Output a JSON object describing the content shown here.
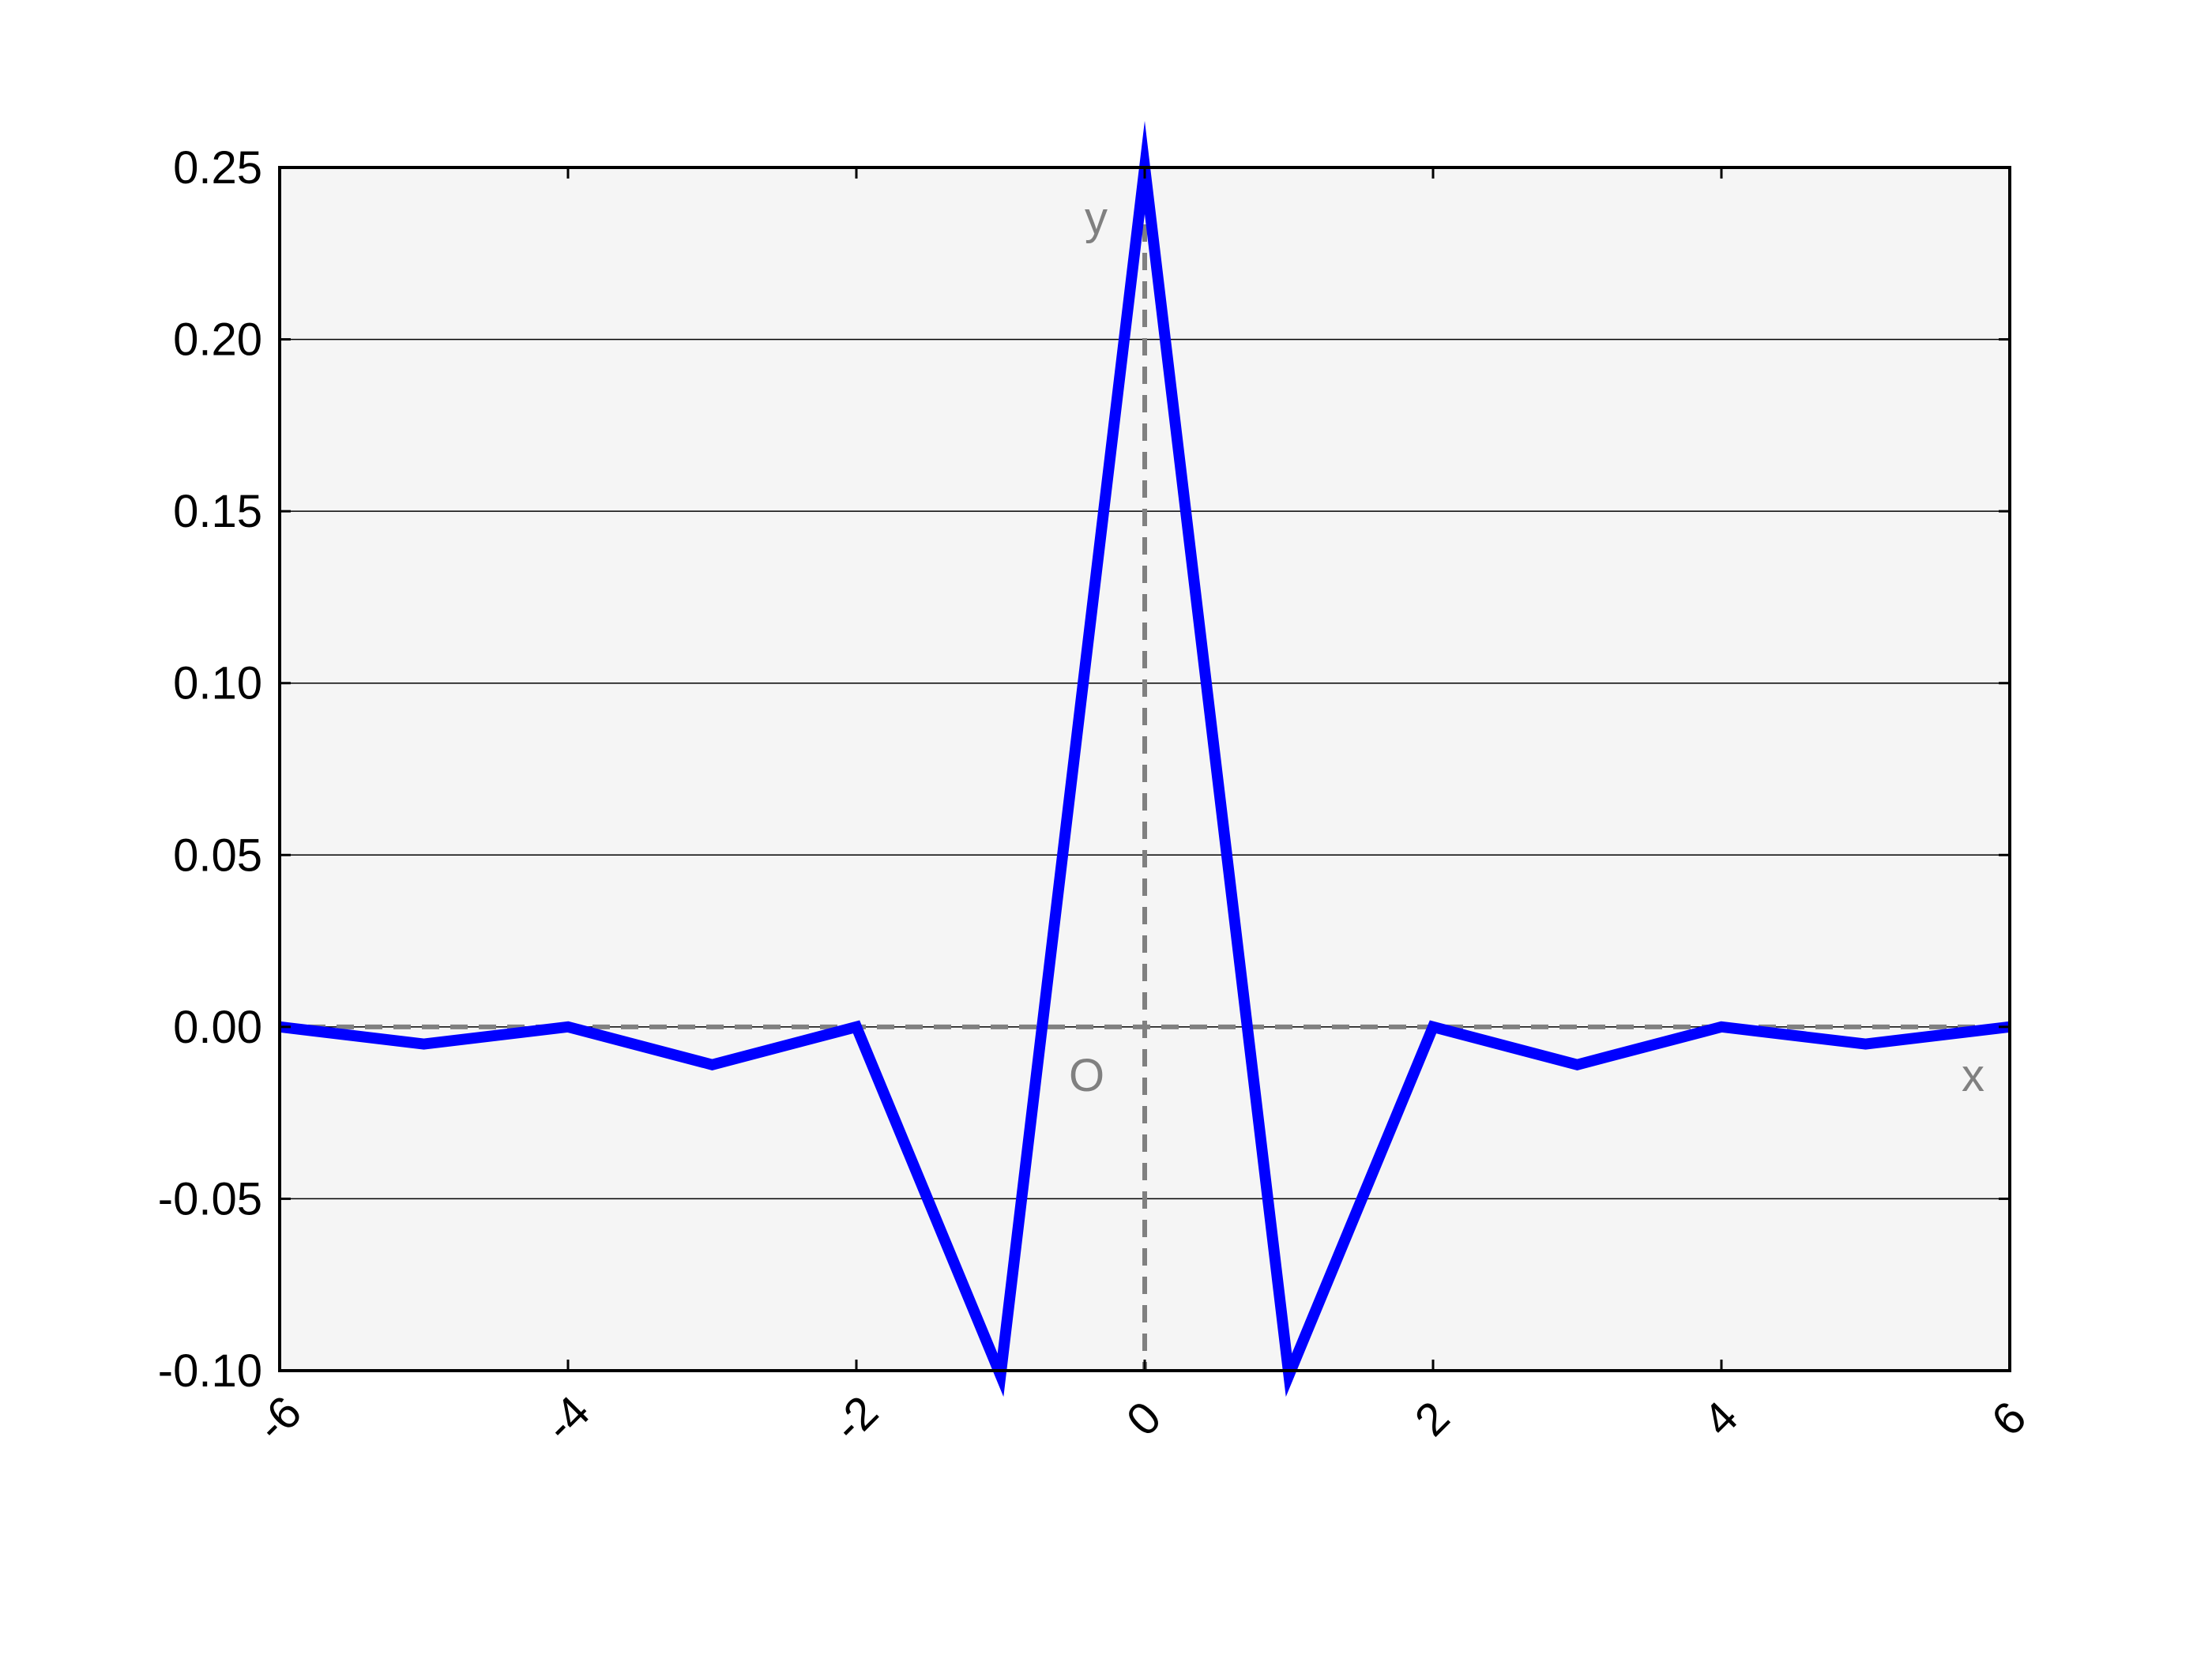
{
  "chart_data": {
    "type": "line",
    "title": "",
    "xlabel": "",
    "ylabel": "",
    "xlim": [
      -6,
      6
    ],
    "ylim": [
      -0.1,
      0.25
    ],
    "grid": "horizontal",
    "x_ticks": [
      -6,
      -4,
      -2,
      0,
      2,
      4,
      6
    ],
    "x_tick_labels": [
      "-6",
      "-4",
      "-2",
      "0",
      "2",
      "4",
      "6"
    ],
    "y_ticks": [
      0.25,
      0.2,
      0.15,
      0.1,
      0.05,
      0.0,
      -0.05,
      -0.1
    ],
    "y_tick_labels": [
      "0.25",
      "0.20",
      "0.15",
      "0.10",
      "0.05",
      "0.00",
      "-0.05",
      "-0.10"
    ],
    "annotations": {
      "x_axis": "x",
      "y_axis": "y",
      "origin": "O"
    },
    "series": [
      {
        "color": "#0000ff",
        "x": [
          -6,
          -5,
          -4,
          -3,
          -2,
          -1,
          0,
          1,
          2,
          3,
          4,
          5,
          6
        ],
        "y": [
          0.0,
          -0.005,
          0.0,
          -0.011,
          0.0,
          -0.1013,
          0.25,
          -0.1013,
          0.0,
          -0.011,
          0.0,
          -0.005,
          0.0
        ]
      }
    ],
    "colors": {
      "background": "#f5f5f5",
      "line": "#0000ff",
      "reference_lines": "#808080",
      "grid": "#000000"
    }
  }
}
